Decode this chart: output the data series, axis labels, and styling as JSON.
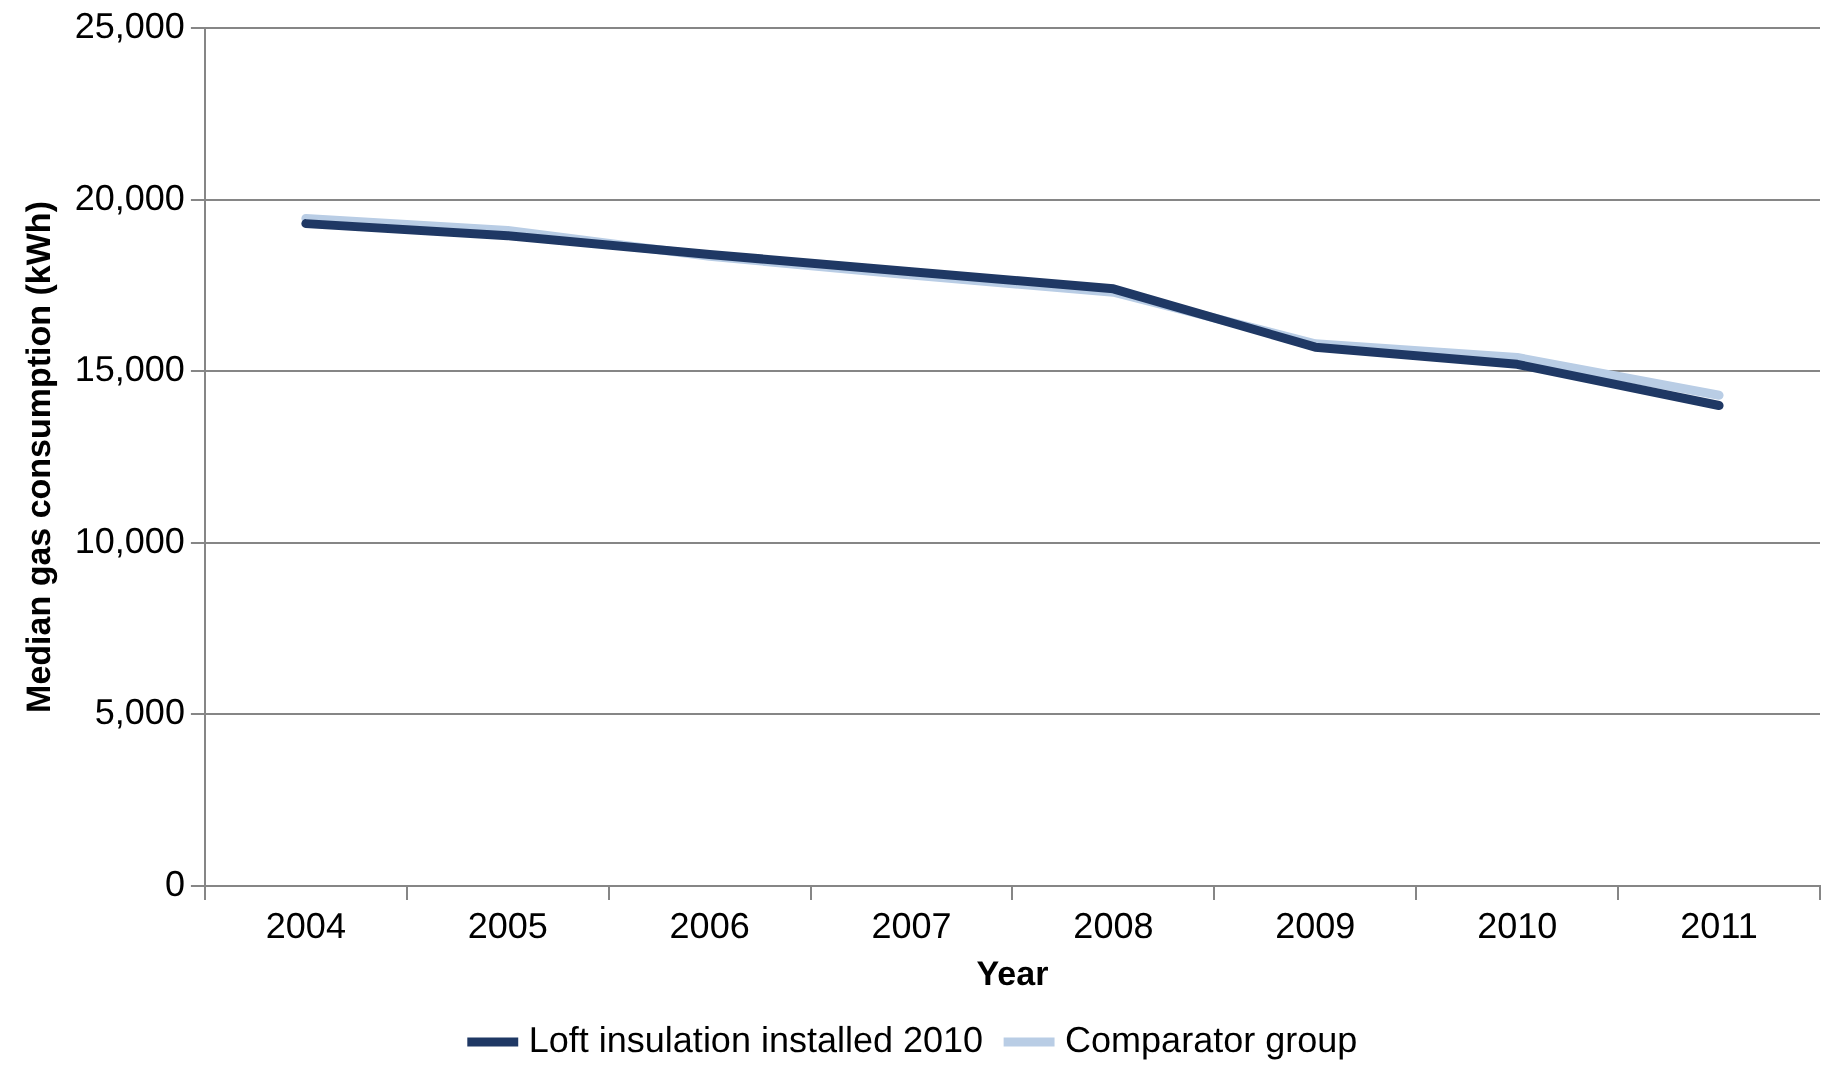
{
  "chart_data": {
    "type": "line",
    "xlabel": "Year",
    "ylabel": "Median gas consumption (kWh)",
    "categories": [
      "2004",
      "2005",
      "2006",
      "2007",
      "2008",
      "2009",
      "2010",
      "2011"
    ],
    "series": [
      {
        "name": "Loft insulation installed 2010",
        "color": "#1f3864",
        "values": [
          19300,
          18950,
          18400,
          17900,
          17400,
          15700,
          15200,
          14000
        ]
      },
      {
        "name": "Comparator group",
        "color": "#b9cde5",
        "values": [
          19450,
          19100,
          18350,
          17800,
          17300,
          15800,
          15400,
          14300
        ]
      }
    ],
    "ylim": [
      0,
      25000
    ],
    "yticks": [
      {
        "value": 0,
        "label": "0"
      },
      {
        "value": 5000,
        "label": "5,000"
      },
      {
        "value": 10000,
        "label": "10,000"
      },
      {
        "value": 15000,
        "label": "15,000"
      },
      {
        "value": 20000,
        "label": "20,000"
      },
      {
        "value": 25000,
        "label": "25,000"
      }
    ],
    "grid": "y",
    "legend": "bottom",
    "marker": "none",
    "line_style": "solid"
  }
}
